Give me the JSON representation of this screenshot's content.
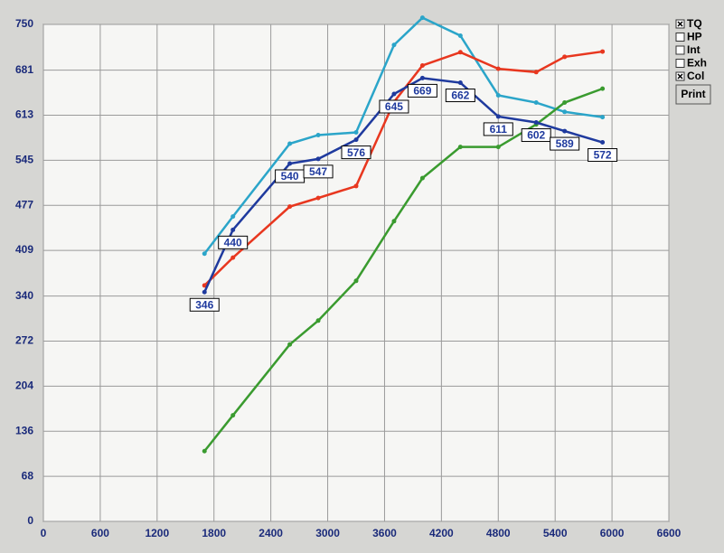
{
  "chart_data": {
    "type": "line",
    "xlim": [
      0,
      6600
    ],
    "xticks": [
      0,
      600,
      1200,
      1800,
      2400,
      3000,
      3600,
      4200,
      4800,
      5400,
      6000,
      6600
    ],
    "ylim": [
      0,
      750
    ],
    "yticks": [
      0,
      68,
      136,
      204,
      272,
      340,
      409,
      477,
      545,
      613,
      681,
      750
    ],
    "grid": true,
    "x": [
      1700,
      2000,
      2600,
      2900,
      3300,
      3700,
      4000,
      4400,
      4800,
      5200,
      5500,
      5900
    ],
    "series": [
      {
        "color": "#2ba5c9",
        "values": [
          404,
          460,
          570,
          583,
          587,
          719,
          760,
          733,
          643,
          632,
          618,
          610
        ]
      },
      {
        "color": "#e8371f",
        "values": [
          356,
          398,
          475,
          488,
          506,
          633,
          688,
          708,
          683,
          678,
          701,
          709
        ]
      },
      {
        "color": "#3a9b2f",
        "values": [
          106,
          160,
          267,
          303,
          363,
          453,
          518,
          565,
          565,
          599,
          632,
          653
        ]
      },
      {
        "color": "#1f3a9e",
        "data_labels": true,
        "values": [
          346,
          440,
          540,
          547,
          576,
          645,
          669,
          662,
          611,
          602,
          589,
          572
        ]
      }
    ]
  },
  "controls": {
    "checkboxes": [
      {
        "label": "TQ",
        "checked": true
      },
      {
        "label": "HP",
        "checked": false
      },
      {
        "label": "Int",
        "checked": false
      },
      {
        "label": "Exh",
        "checked": false
      },
      {
        "label": "Col",
        "checked": true
      }
    ],
    "button": "Print"
  }
}
